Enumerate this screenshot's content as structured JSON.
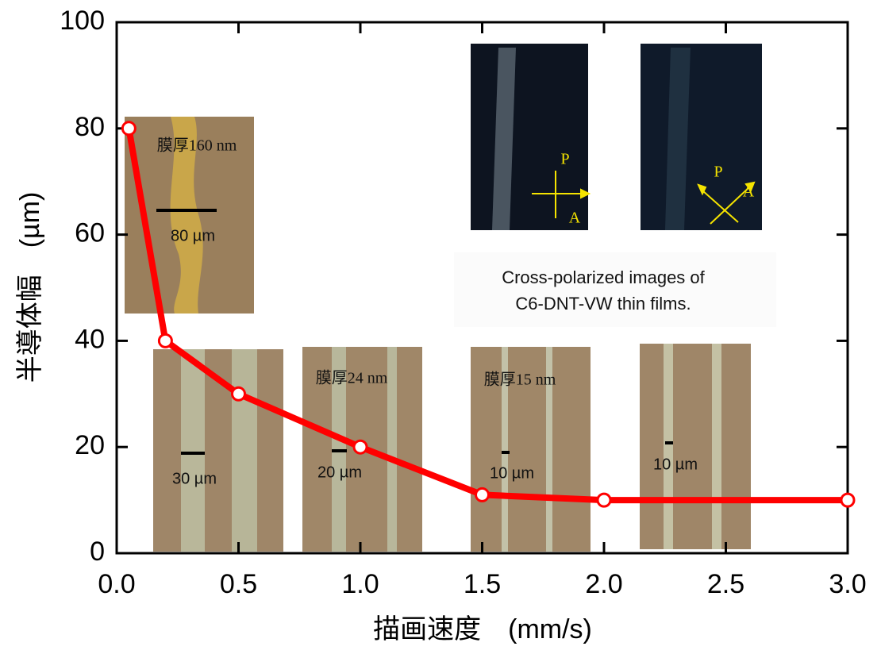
{
  "chart_data": {
    "type": "line",
    "x_label": "描画速度　(mm/s)",
    "y_label": "半導体幅　(µm)",
    "x": [
      0.05,
      0.2,
      0.5,
      1.0,
      1.5,
      2.0,
      3.0
    ],
    "series": [
      {
        "color": "#ff0000",
        "values": [
          80,
          40,
          30,
          20,
          11,
          10,
          10
        ]
      }
    ],
    "xlim": [
      0,
      3
    ],
    "ylim": [
      0,
      100
    ],
    "xticks": [
      {
        "value": 0,
        "label": "0.0"
      },
      0.5,
      {
        "value": 1,
        "label": "1.0"
      },
      1.5,
      {
        "value": 2,
        "label": "2.0"
      },
      2.5,
      {
        "value": 3,
        "label": "3.0"
      }
    ],
    "yticks": [
      0,
      20,
      40,
      60,
      80,
      100
    ],
    "annotations": [
      "膜厚160 nm",
      "80 µm",
      "30 µm",
      "膜厚24 nm",
      "20 µm",
      "膜厚15 nm",
      "10 µm",
      "10 µm",
      "P",
      "A",
      "P",
      "A",
      "Cross-polarized images of",
      "C6-DNT-VW thin films."
    ]
  }
}
